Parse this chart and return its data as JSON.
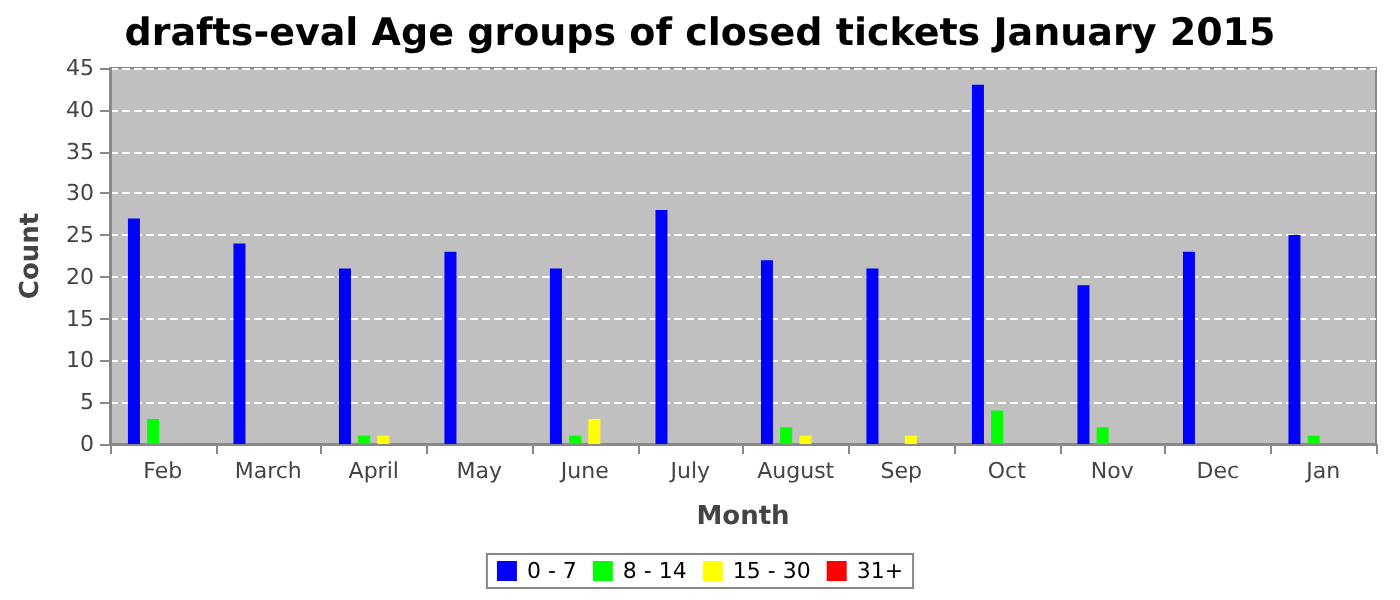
{
  "chart_data": {
    "type": "bar",
    "title": "drafts-eval Age groups of closed tickets January 2015",
    "xlabel": "Month",
    "ylabel": "Count",
    "categories": [
      "Feb",
      "March",
      "April",
      "May",
      "June",
      "July",
      "August",
      "Sep",
      "Oct",
      "Nov",
      "Dec",
      "Jan"
    ],
    "series": [
      {
        "name": "0 - 7",
        "color": "#0000ff",
        "values": [
          27,
          24,
          21,
          23,
          21,
          28,
          22,
          21,
          43,
          19,
          23,
          25
        ]
      },
      {
        "name": "8 - 14",
        "color": "#00ff00",
        "values": [
          3,
          0,
          1,
          0,
          1,
          0,
          2,
          0,
          4,
          2,
          0,
          1
        ]
      },
      {
        "name": "15 - 30",
        "color": "#ffff00",
        "values": [
          0,
          0,
          1,
          0,
          3,
          0,
          1,
          1,
          0,
          0,
          0,
          0
        ]
      },
      {
        "name": "31+",
        "color": "#ff0000",
        "values": [
          0,
          0,
          0,
          0,
          0,
          0,
          0,
          0,
          0,
          0,
          0,
          0
        ]
      }
    ],
    "ylim": [
      0,
      45
    ],
    "yticks": [
      0,
      5,
      10,
      15,
      20,
      25,
      30,
      35,
      40,
      45
    ],
    "grid": "y",
    "legend": "bottom"
  }
}
